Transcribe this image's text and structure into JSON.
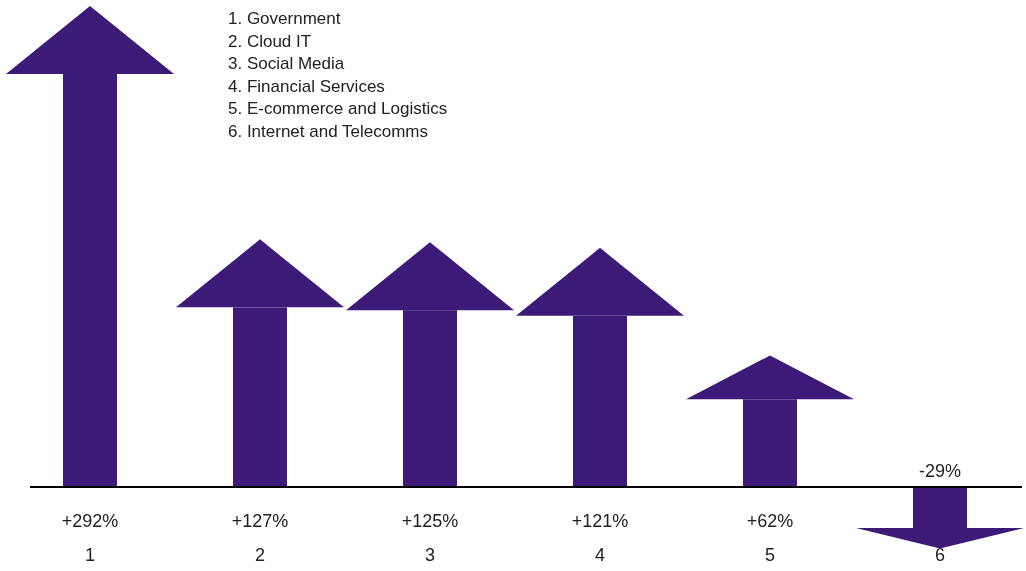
{
  "chart_data": {
    "type": "bar",
    "categories": [
      "1",
      "2",
      "3",
      "4",
      "5",
      "6"
    ],
    "values": [
      292,
      127,
      125,
      121,
      62,
      -29
    ],
    "value_labels": [
      "+292%",
      "+127%",
      "+125%",
      "+121%",
      "+62%",
      "-29%"
    ],
    "color": "#3d1a78",
    "annotations": [
      "1. Government",
      "2. Cloud IT",
      "3. Social Media",
      "4. Financial Services",
      "5. E-commerce and Logistics",
      "6. Internet and Telecomms"
    ]
  }
}
